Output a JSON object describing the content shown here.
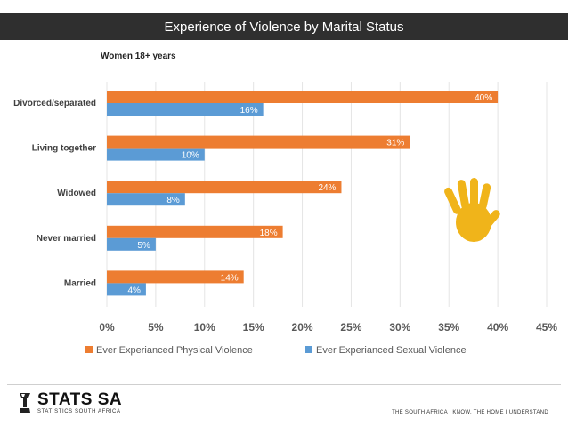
{
  "chart_data": {
    "type": "bar",
    "orientation": "horizontal",
    "title": "Experience of  Violence by Marital Status",
    "subtitle": "Women 18+ years",
    "categories": [
      "Divorced/separated",
      "Living together",
      "Widowed",
      "Never married",
      "Married"
    ],
    "series": [
      {
        "name": "Ever Experianced Physical Violence",
        "color": "#ed7d31",
        "values": [
          40,
          31,
          24,
          18,
          14
        ],
        "labels": [
          "40%",
          "31%",
          "24%",
          "18%",
          "14%"
        ]
      },
      {
        "name": "Ever Experianced Sexual Violence",
        "color": "#5b9bd5",
        "values": [
          16,
          10,
          8,
          5,
          4
        ],
        "labels": [
          "16%",
          "10%",
          "8%",
          "5%",
          "4%"
        ]
      }
    ],
    "xlim": [
      0,
      45
    ],
    "xticks": [
      0,
      5,
      10,
      15,
      20,
      25,
      30,
      35,
      40,
      45
    ],
    "xtick_labels": [
      "0%",
      "5%",
      "10%",
      "15%",
      "20%",
      "25%",
      "30%",
      "35%",
      "40%",
      "45%"
    ],
    "grid": true,
    "legend_position": "bottom"
  },
  "footer": {
    "logo_name": "STATS SA",
    "logo_sub": "STATISTICS SOUTH AFRICA",
    "tagline": "THE SOUTH AFRICA I KNOW, THE HOME I UNDERSTAND"
  },
  "colors": {
    "title_bg": "#2f2f2f",
    "hand": "#f0b41a"
  }
}
